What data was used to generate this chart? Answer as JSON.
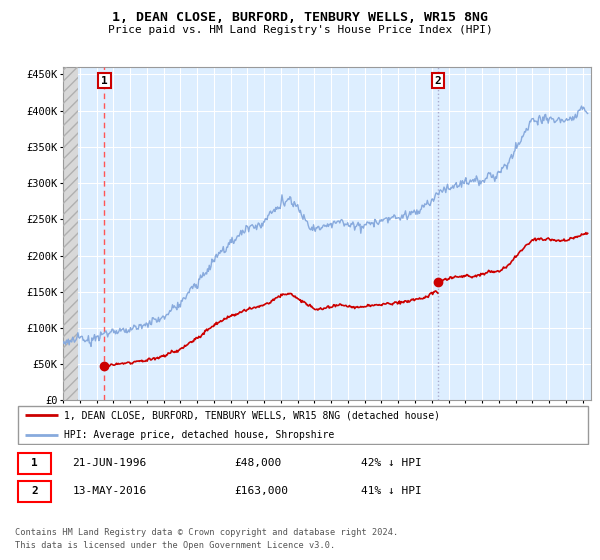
{
  "title1": "1, DEAN CLOSE, BURFORD, TENBURY WELLS, WR15 8NG",
  "title2": "Price paid vs. HM Land Registry's House Price Index (HPI)",
  "ylabel_ticks": [
    "£0",
    "£50K",
    "£100K",
    "£150K",
    "£200K",
    "£250K",
    "£300K",
    "£350K",
    "£400K",
    "£450K"
  ],
  "ytick_values": [
    0,
    50000,
    100000,
    150000,
    200000,
    250000,
    300000,
    350000,
    400000,
    450000
  ],
  "ylim": [
    0,
    460000
  ],
  "xlim_start": 1994.0,
  "xlim_end": 2025.5,
  "sale1_date": 1996.47,
  "sale1_price": 48000,
  "sale2_date": 2016.37,
  "sale2_price": 163000,
  "legend_line1": "1, DEAN CLOSE, BURFORD, TENBURY WELLS, WR15 8NG (detached house)",
  "legend_line2": "HPI: Average price, detached house, Shropshire",
  "footer1": "Contains HM Land Registry data © Crown copyright and database right 2024.",
  "footer2": "This data is licensed under the Open Government Licence v3.0.",
  "bg_plot": "#ddeeff",
  "bg_hatch_fc": "#e0e0e0",
  "grid_color": "#ffffff",
  "sale_color": "#cc0000",
  "hpi_color": "#88aadd",
  "vline1_color": "#ff5555",
  "vline2_color": "#aaaacc",
  "hatch_end": 1994.9
}
